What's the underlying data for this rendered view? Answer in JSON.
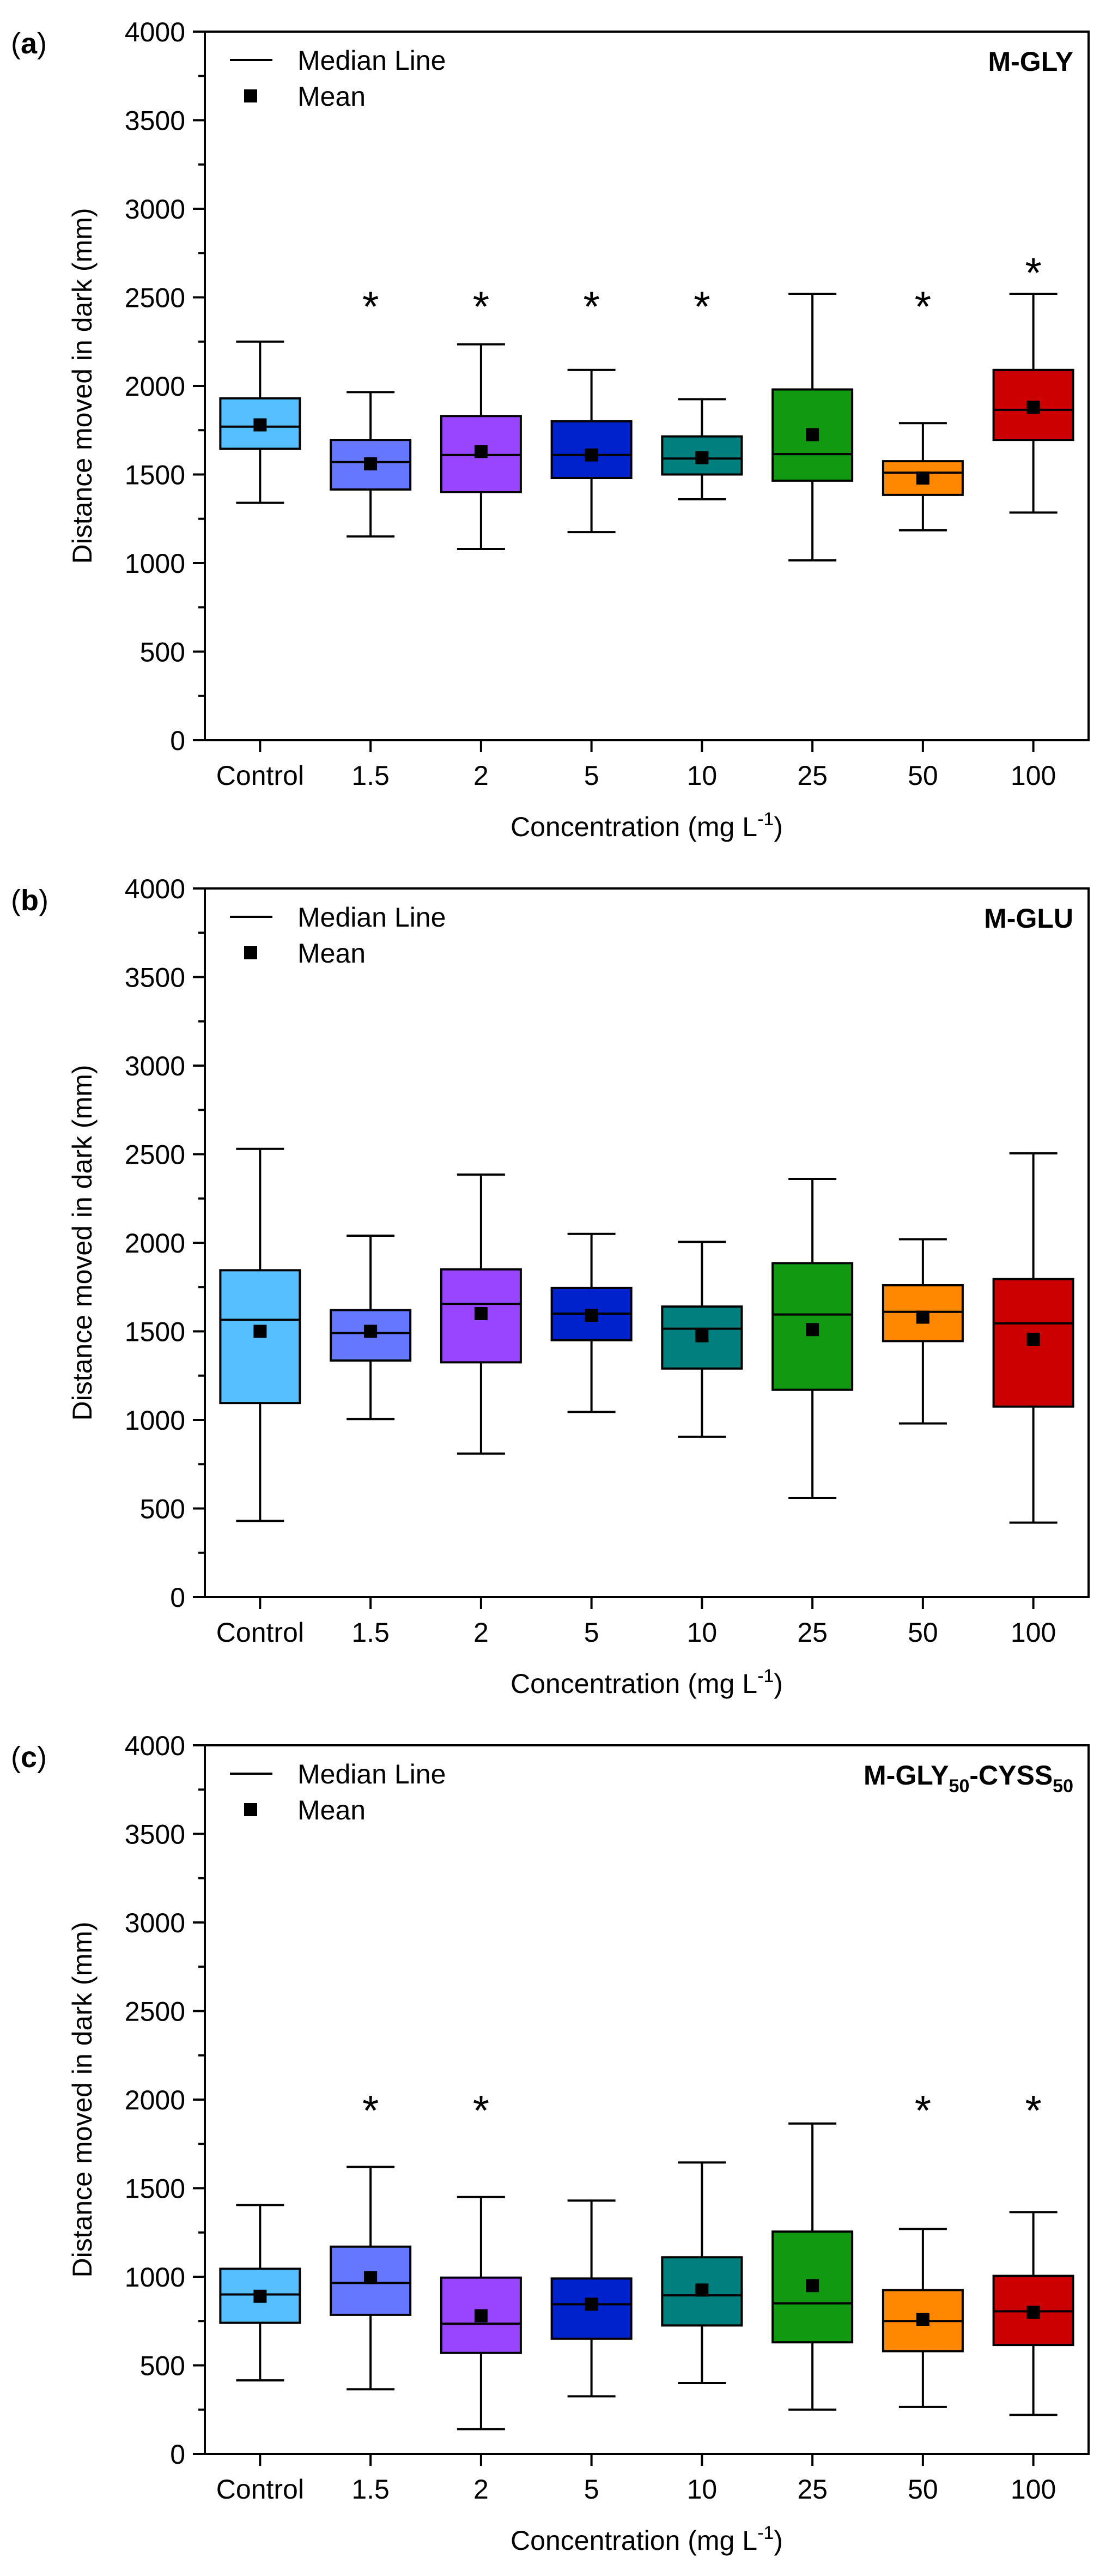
{
  "chart_data": [
    {
      "type": "box",
      "panel_label": "a",
      "title": "M-GLY",
      "title_sub1": "",
      "title_mid": "",
      "title_sub2": "",
      "xlabel": "Concentration (mg L",
      "xlabel_sup": "-1",
      "xlabel_end": ")",
      "ylabel": "Distance moved in dark (mm)",
      "ylim": [
        0,
        4000
      ],
      "yticks": [
        "0",
        "500",
        "1000",
        "1500",
        "2000",
        "2500",
        "3000",
        "3500",
        "4000"
      ],
      "legend": {
        "position": "top-left",
        "median_label": "Median Line",
        "mean_label": "Mean"
      },
      "categories": [
        "Control",
        "1.5",
        "2",
        "5",
        "10",
        "25",
        "50",
        "100"
      ],
      "colors": [
        "#55bfff",
        "#6677ff",
        "#9944ff",
        "#0022cc",
        "#007f7f",
        "#119911",
        "#ff8800",
        "#cc0000"
      ],
      "boxes": [
        {
          "min": 1340,
          "q1": 1645,
          "median": 1770,
          "q3": 1930,
          "max": 2250,
          "mean": 1780
        },
        {
          "min": 1150,
          "q1": 1415,
          "median": 1570,
          "q3": 1695,
          "max": 1965,
          "mean": 1560
        },
        {
          "min": 1080,
          "q1": 1400,
          "median": 1610,
          "q3": 1830,
          "max": 2235,
          "mean": 1630
        },
        {
          "min": 1175,
          "q1": 1480,
          "median": 1610,
          "q3": 1800,
          "max": 2090,
          "mean": 1610
        },
        {
          "min": 1360,
          "q1": 1500,
          "median": 1590,
          "q3": 1715,
          "max": 1925,
          "mean": 1595
        },
        {
          "min": 1015,
          "q1": 1465,
          "median": 1615,
          "q3": 1980,
          "max": 2520,
          "mean": 1725
        },
        {
          "min": 1185,
          "q1": 1385,
          "median": 1510,
          "q3": 1575,
          "max": 1790,
          "mean": 1480
        },
        {
          "min": 1285,
          "q1": 1695,
          "median": 1865,
          "q3": 2090,
          "max": 2520,
          "mean": 1880
        }
      ],
      "significance": [
        {
          "category": "1.5",
          "label": "*",
          "y": 2490
        },
        {
          "category": "2",
          "label": "*",
          "y": 2490
        },
        {
          "category": "5",
          "label": "*",
          "y": 2490
        },
        {
          "category": "10",
          "label": "*",
          "y": 2490
        },
        {
          "category": "50",
          "label": "*",
          "y": 2490
        },
        {
          "category": "100",
          "label": "*",
          "y": 2680
        }
      ]
    },
    {
      "type": "box",
      "panel_label": "b",
      "title": "M-GLU",
      "title_sub1": "",
      "title_mid": "",
      "title_sub2": "",
      "xlabel": "Concentration (mg L",
      "xlabel_sup": "-1",
      "xlabel_end": ")",
      "ylabel": "Distance moved in dark (mm)",
      "ylim": [
        0,
        4000
      ],
      "yticks": [
        "0",
        "500",
        "1000",
        "1500",
        "2000",
        "2500",
        "3000",
        "3500",
        "4000"
      ],
      "legend": {
        "position": "top-left",
        "median_label": "Median Line",
        "mean_label": "Mean"
      },
      "categories": [
        "Control",
        "1.5",
        "2",
        "5",
        "10",
        "25",
        "50",
        "100"
      ],
      "colors": [
        "#55bfff",
        "#6677ff",
        "#9944ff",
        "#0022cc",
        "#007f7f",
        "#119911",
        "#ff8800",
        "#cc0000"
      ],
      "boxes": [
        {
          "min": 430,
          "q1": 1095,
          "median": 1565,
          "q3": 1845,
          "max": 2530,
          "mean": 1500
        },
        {
          "min": 1005,
          "q1": 1335,
          "median": 1490,
          "q3": 1620,
          "max": 2040,
          "mean": 1500
        },
        {
          "min": 810,
          "q1": 1325,
          "median": 1655,
          "q3": 1850,
          "max": 2385,
          "mean": 1600
        },
        {
          "min": 1045,
          "q1": 1450,
          "median": 1600,
          "q3": 1745,
          "max": 2050,
          "mean": 1590
        },
        {
          "min": 905,
          "q1": 1290,
          "median": 1515,
          "q3": 1640,
          "max": 2005,
          "mean": 1475
        },
        {
          "min": 560,
          "q1": 1170,
          "median": 1595,
          "q3": 1885,
          "max": 2360,
          "mean": 1510
        },
        {
          "min": 980,
          "q1": 1445,
          "median": 1610,
          "q3": 1760,
          "max": 2020,
          "mean": 1580
        },
        {
          "min": 420,
          "q1": 1075,
          "median": 1545,
          "q3": 1795,
          "max": 2505,
          "mean": 1455
        }
      ],
      "significance": []
    },
    {
      "type": "box",
      "panel_label": "c",
      "title": "M-GLY",
      "title_sub1": "50",
      "title_mid": "-CYSS",
      "title_sub2": "50",
      "xlabel": "Concentration (mg L",
      "xlabel_sup": "-1",
      "xlabel_end": ")",
      "ylabel": "Distance moved in dark (mm)",
      "ylim": [
        0,
        4000
      ],
      "yticks": [
        "0",
        "500",
        "1000",
        "1500",
        "2000",
        "2500",
        "3000",
        "3500",
        "4000"
      ],
      "legend": {
        "position": "top-left",
        "median_label": "Median Line",
        "mean_label": "Mean"
      },
      "categories": [
        "Control",
        "1.5",
        "2",
        "5",
        "10",
        "25",
        "50",
        "100"
      ],
      "colors": [
        "#55bfff",
        "#6677ff",
        "#9944ff",
        "#0022cc",
        "#007f7f",
        "#119911",
        "#ff8800",
        "#cc0000"
      ],
      "boxes": [
        {
          "min": 415,
          "q1": 740,
          "median": 900,
          "q3": 1045,
          "max": 1405,
          "mean": 890
        },
        {
          "min": 365,
          "q1": 785,
          "median": 965,
          "q3": 1170,
          "max": 1620,
          "mean": 995
        },
        {
          "min": 140,
          "q1": 570,
          "median": 735,
          "q3": 995,
          "max": 1450,
          "mean": 780
        },
        {
          "min": 325,
          "q1": 650,
          "median": 845,
          "q3": 990,
          "max": 1430,
          "mean": 845
        },
        {
          "min": 400,
          "q1": 725,
          "median": 895,
          "q3": 1110,
          "max": 1645,
          "mean": 925
        },
        {
          "min": 250,
          "q1": 630,
          "median": 850,
          "q3": 1255,
          "max": 1865,
          "mean": 950
        },
        {
          "min": 265,
          "q1": 580,
          "median": 750,
          "q3": 925,
          "max": 1270,
          "mean": 760
        },
        {
          "min": 220,
          "q1": 615,
          "median": 805,
          "q3": 1005,
          "max": 1365,
          "mean": 800
        }
      ],
      "significance": [
        {
          "category": "1.5",
          "label": "*",
          "y": 1980
        },
        {
          "category": "2",
          "label": "*",
          "y": 1980
        },
        {
          "category": "50",
          "label": "*",
          "y": 1980
        },
        {
          "category": "100",
          "label": "*",
          "y": 1980
        }
      ]
    }
  ]
}
